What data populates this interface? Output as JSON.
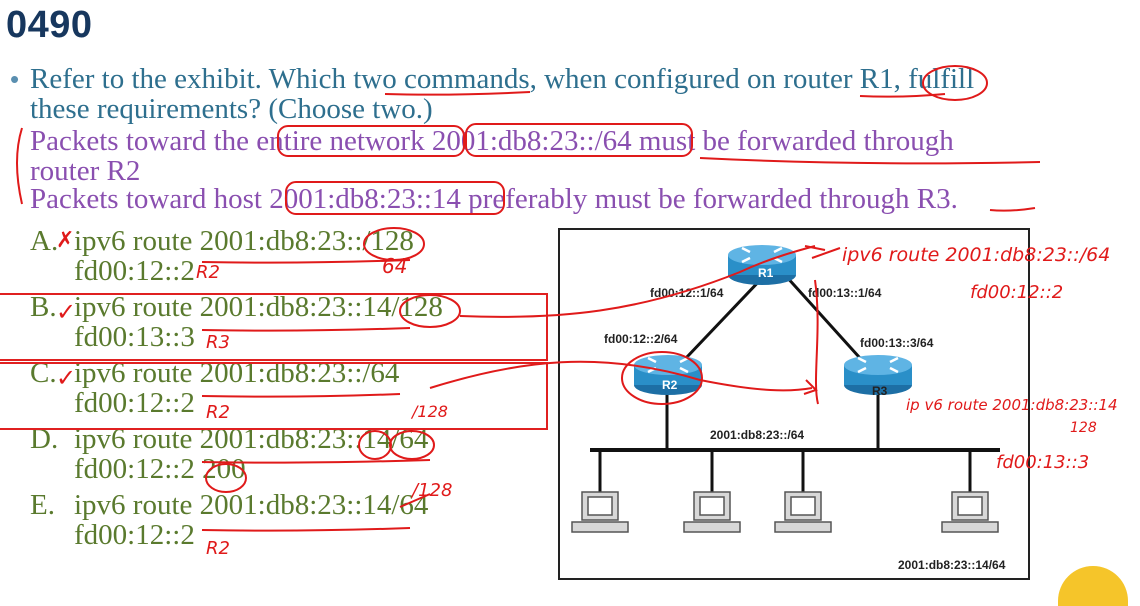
{
  "title": "0490",
  "question": {
    "line1": "Refer to the exhibit. Which two commands, when configured on router R1, fulfill",
    "line2": "these requirements? (Choose two.)"
  },
  "requirements": [
    {
      "line1": "Packets toward the entire network 2001:db8:23::/64 must be forwarded through",
      "line2": "router R2"
    },
    {
      "line1": "Packets toward host 2001:db8:23::14 preferably must be forwarded through R3."
    }
  ],
  "options": [
    {
      "letter": "A.",
      "mark": "✗",
      "line1": "ipv6 route 2001:db8:23::/128",
      "line2": "fd00:12::2",
      "note": "R2",
      "note2": "64"
    },
    {
      "letter": "B.",
      "mark": "✓",
      "line1": "ipv6 route 2001:db8:23::14/128",
      "line2": "fd00:13::3",
      "note": "R3"
    },
    {
      "letter": "C.",
      "mark": "✓",
      "line1": "ipv6 route 2001:db8:23::/64",
      "line2": "fd00:12::2",
      "note": "R2",
      "note2": "/128"
    },
    {
      "letter": "D.",
      "mark": "",
      "line1": "ipv6 route 2001:db8:23::14/64",
      "line2": "fd00:12::2 200",
      "note": ""
    },
    {
      "letter": "E.",
      "mark": "",
      "line1": "ipv6 route 2001:db8:23::14/64",
      "line2": "fd00:12::2",
      "note": "R2",
      "note2": "/128"
    }
  ],
  "exhibit": {
    "routers": {
      "r1": "R1",
      "r2": "R2",
      "r3": "R3"
    },
    "links": {
      "r1_left": "fd00:12::1/64",
      "r1_right": "fd00:13::1/64",
      "r2": "fd00:12::2/64",
      "r3": "fd00:13::3/64"
    },
    "lan": "2001:db8:23::/64",
    "host": "2001:db8:23::14/64"
  },
  "handwriting": {
    "cmd1_line1": "ipv6 route 2001:db8:23::/64",
    "cmd1_line2": "fd00:12::2",
    "cmd2_line1": "ip v6 route 2001:db8:23::14",
    "cmd2_line1b": "128",
    "cmd2_line2": "fd00:13::3"
  },
  "colors": {
    "title": "#17375e",
    "question": "#2e6f8e",
    "requirements": "#8a4fb0",
    "options": "#5a7a2e",
    "annotation": "#e01a1a",
    "router": "#2a8fc8"
  }
}
